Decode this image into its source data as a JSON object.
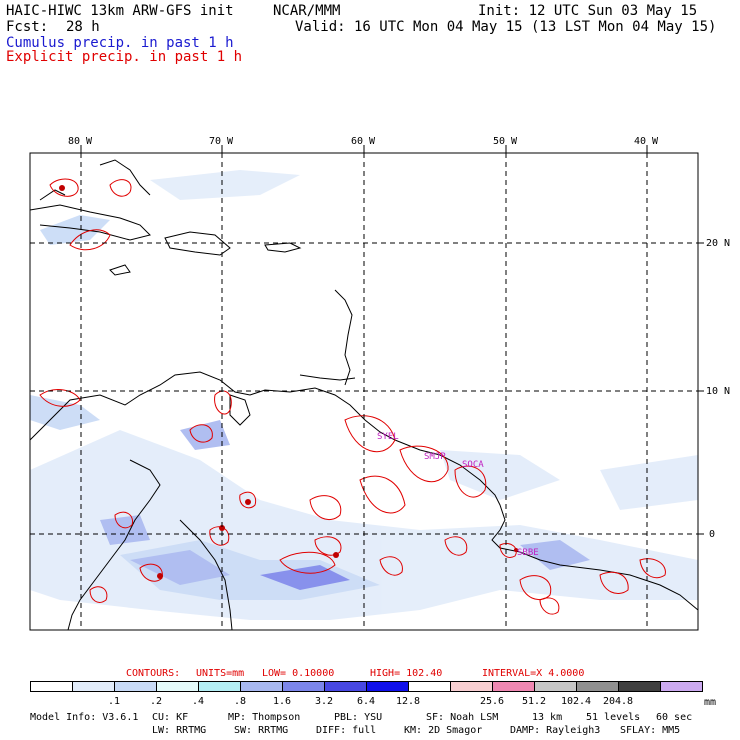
{
  "header": {
    "title": "HAIC-HIWC 13km ARW-GFS init",
    "org": "NCAR/MMM",
    "init": "Init: 12 UTC Sun 03 May 15",
    "fcst_label": "Fcst:",
    "fcst_value": "28 h",
    "valid": "Valid: 16 UTC Mon 04 May 15 (13 LST Mon 04 May 15)",
    "cumulus": "Cumulus precip. in past 1 h",
    "explicit": "Explicit precip. in past 1 h"
  },
  "map": {
    "lon_labels": [
      "80 W",
      "70 W",
      "60 W",
      "50 W",
      "40 W"
    ],
    "lat_labels": [
      "20 N",
      "10 N",
      "0"
    ],
    "stations": [
      "SYEL",
      "SMJP",
      "SOCA",
      "SBBE"
    ]
  },
  "contours": {
    "label": "CONTOURS:",
    "units": "UNITS=mm",
    "low": "LOW= 0.10000",
    "high": "HIGH= 102.40",
    "interval": "INTERVAL=X 4.0000"
  },
  "colorbar": {
    "colors": [
      "#ffffff",
      "#e2ecfa",
      "#c8daf6",
      "#e4fafa",
      "#b4eef4",
      "#a8b8f0",
      "#7c86ea",
      "#4848e2",
      "#1010ea",
      "#ffffff",
      "#f8cfd2",
      "#ef88b2",
      "#c6c6c6",
      "#909090",
      "#404040",
      "#ccaaf0"
    ],
    "labels": [
      ".1",
      ".2",
      ".4",
      ".8",
      "1.6",
      "3.2",
      "6.4",
      "12.8",
      "25.6",
      "51.2",
      "102.4",
      "204.8"
    ],
    "units": "mm"
  },
  "model_info": {
    "line1": [
      "Model Info: V3.6.1",
      "CU: KF",
      "MP: Thompson",
      "PBL: YSU",
      "SF: Noah LSM",
      "13 km",
      "51 levels",
      "60 sec"
    ],
    "line2": [
      "LW: RRTMG",
      "SW: RRTMG",
      "DIFF: full",
      "KM: 2D Smagor",
      "DAMP: Rayleigh3",
      "SFLAY: MM5"
    ]
  }
}
